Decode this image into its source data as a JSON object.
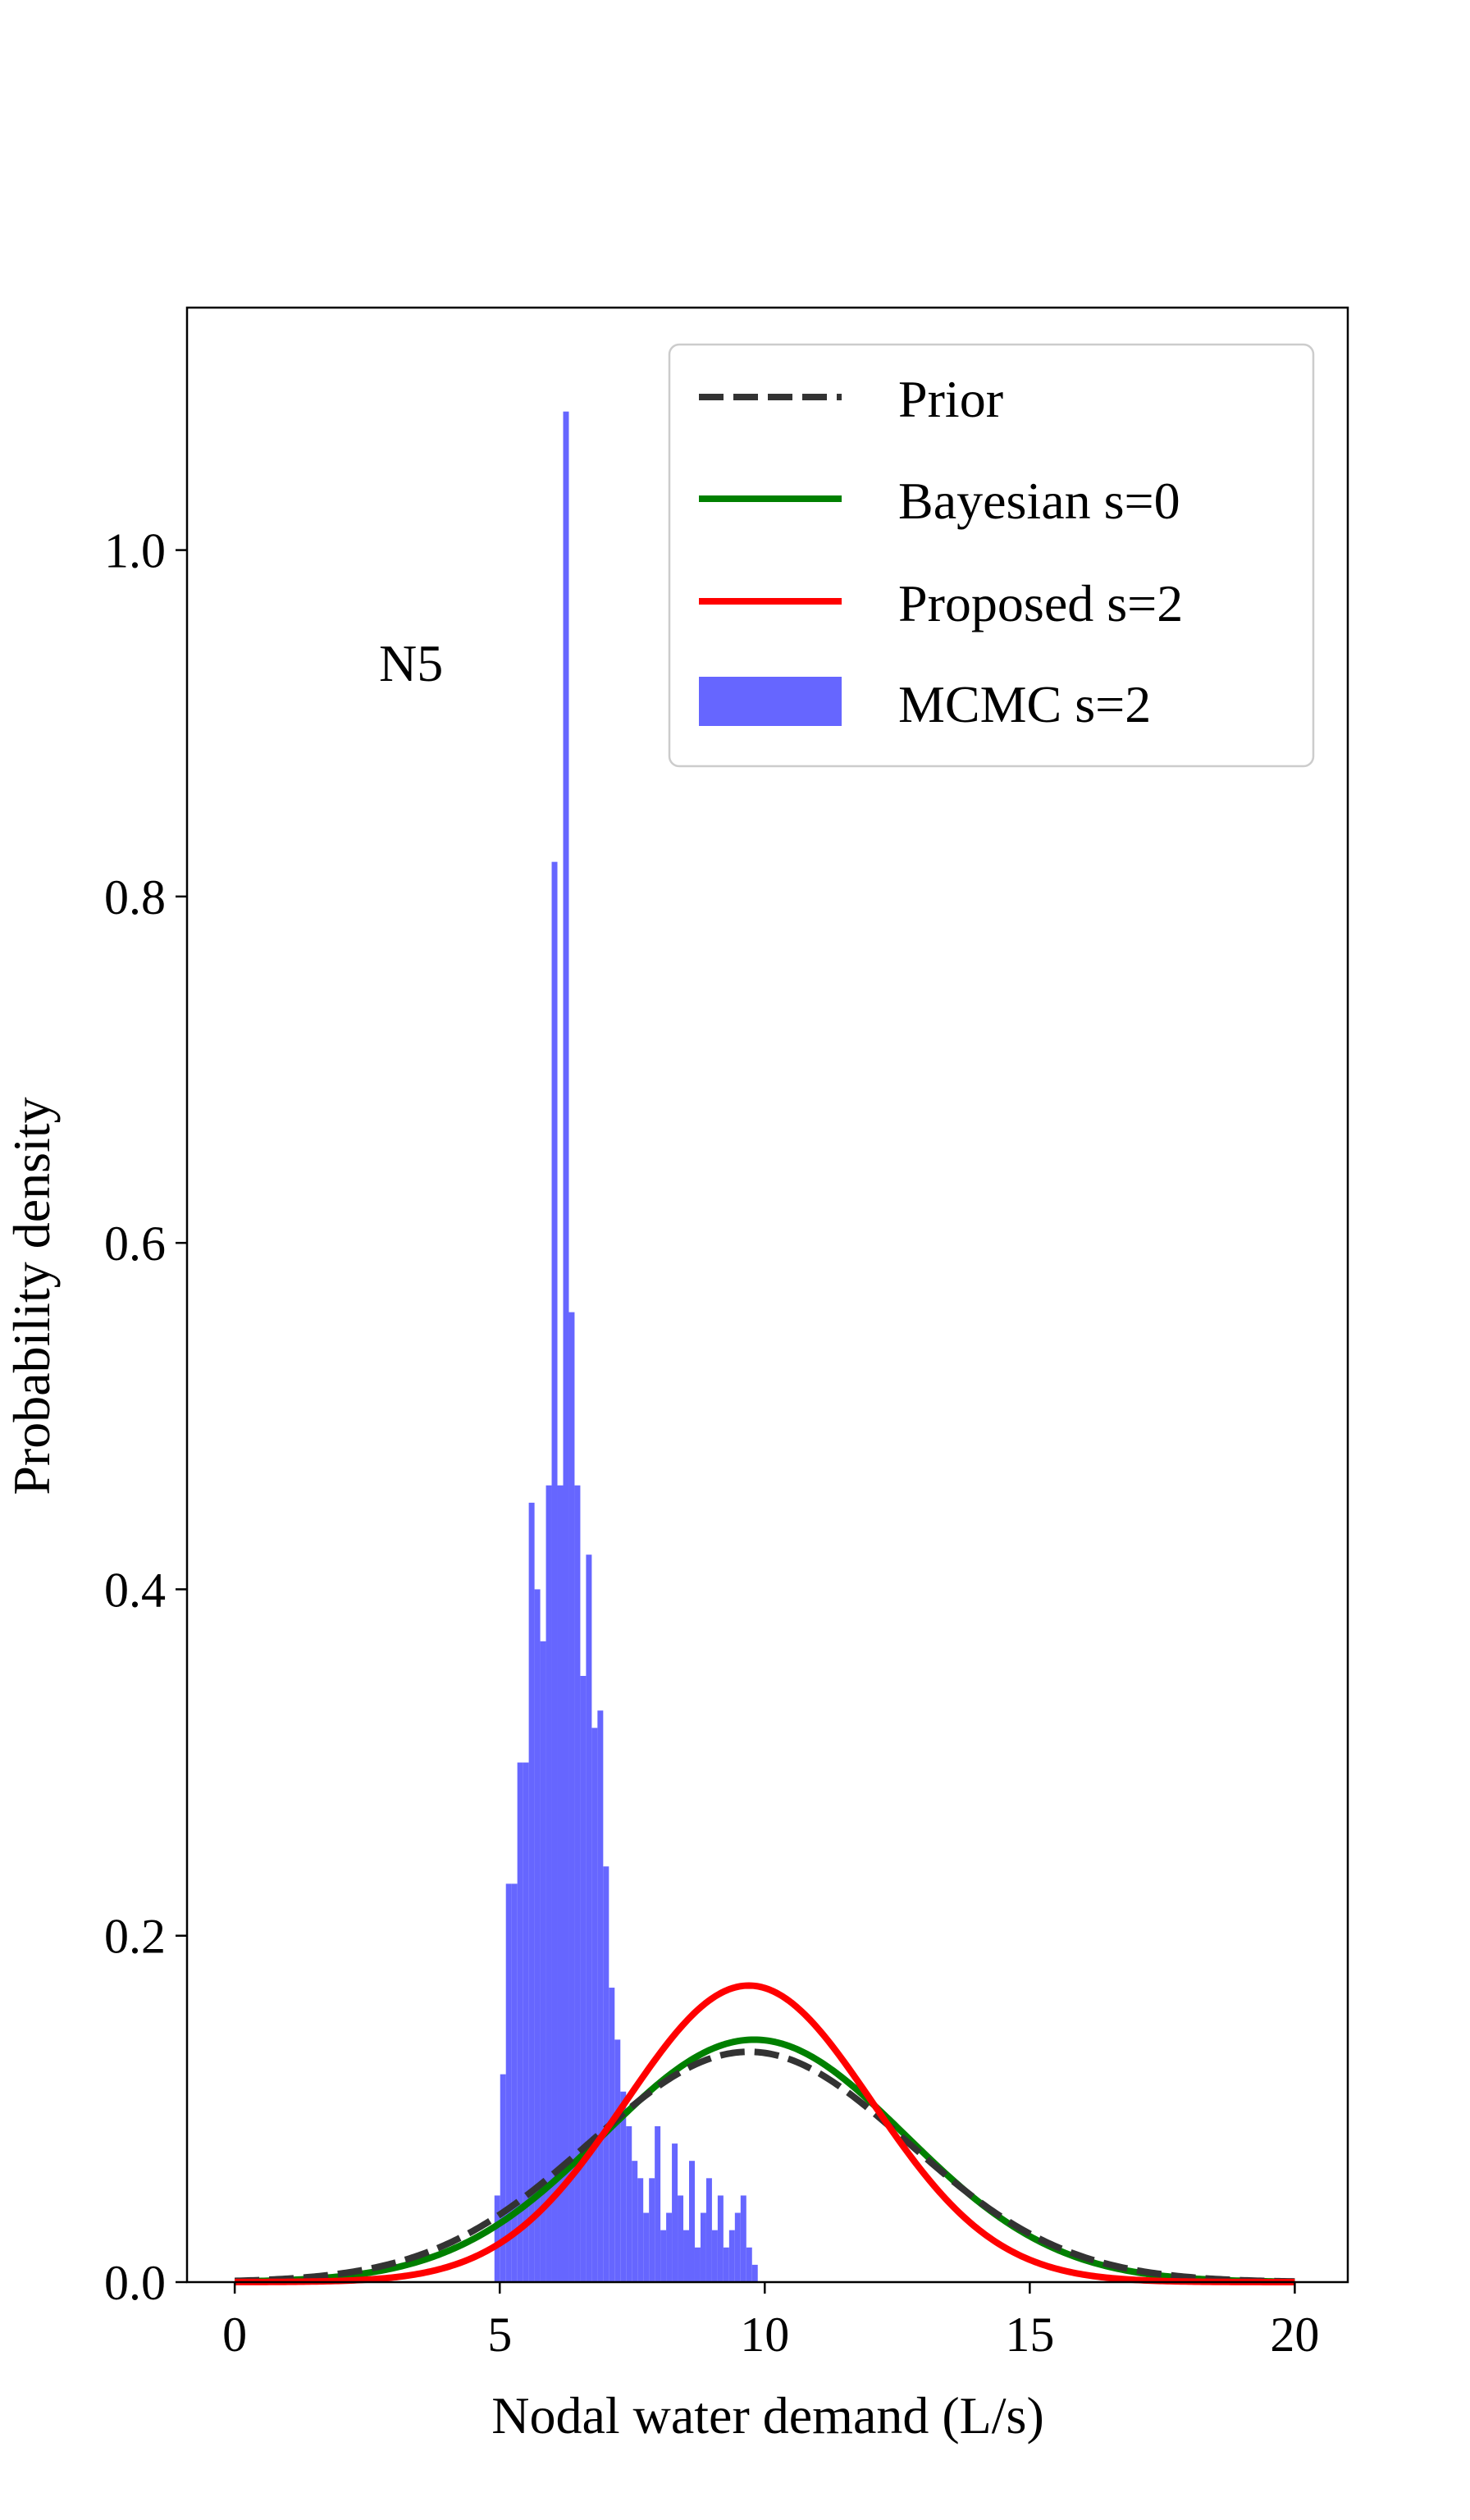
{
  "chart_data": {
    "type": "line",
    "title": "",
    "xlabel": "Nodal water demand (L/s)",
    "ylabel": "Probability density",
    "xlim": [
      -0.9,
      21.0
    ],
    "ylim": [
      0.0,
      1.14
    ],
    "xticks": [
      {
        "value": 0,
        "label": "0"
      },
      {
        "value": 5,
        "label": "5"
      },
      {
        "value": 10,
        "label": "10"
      },
      {
        "value": 15,
        "label": "15"
      },
      {
        "value": 20,
        "label": "20"
      }
    ],
    "yticks": [
      {
        "value": 0.0,
        "label": "0.0"
      },
      {
        "value": 0.2,
        "label": "0.2"
      },
      {
        "value": 0.4,
        "label": "0.4"
      },
      {
        "value": 0.6,
        "label": "0.6"
      },
      {
        "value": 0.8,
        "label": "0.8"
      },
      {
        "value": 1.0,
        "label": "1.0"
      }
    ],
    "grid": false,
    "legend_position": "upper-right",
    "annotation": "N5",
    "series": [
      {
        "name": "Prior",
        "kind": "line",
        "style": "dashed",
        "color": "#333333",
        "mean": 9.7,
        "std": 3.0
      },
      {
        "name": "Bayesian s=0",
        "kind": "line",
        "style": "solid",
        "color": "#008000",
        "mean": 9.8,
        "std": 2.85
      },
      {
        "name": "Proposed s=2",
        "kind": "line",
        "style": "solid",
        "color": "#ff0000",
        "mean": 9.7,
        "std": 2.33
      },
      {
        "name": "MCMC s=2",
        "kind": "histogram",
        "color": "#6666ff",
        "bin_width": 0.108,
        "bin_starts": [
          4.9,
          5.008,
          5.116,
          5.224,
          5.332,
          5.44,
          5.548,
          5.656,
          5.764,
          5.872,
          5.98,
          6.088,
          6.196,
          6.304,
          6.412,
          6.52,
          6.628,
          6.736,
          6.844,
          6.952,
          7.06,
          7.168,
          7.276,
          7.384,
          7.492,
          7.6,
          7.708,
          7.816,
          7.924,
          8.032,
          8.14,
          8.248,
          8.356,
          8.464,
          8.572,
          8.68,
          8.788,
          8.896,
          9.004,
          9.112,
          9.22,
          9.328,
          9.436,
          9.544,
          9.652,
          9.76
        ],
        "densities": [
          0.05,
          0.12,
          0.23,
          0.23,
          0.3,
          0.3,
          0.45,
          0.4,
          0.37,
          0.46,
          0.82,
          0.46,
          1.08,
          0.56,
          0.46,
          0.35,
          0.42,
          0.32,
          0.33,
          0.24,
          0.17,
          0.14,
          0.11,
          0.09,
          0.07,
          0.06,
          0.04,
          0.06,
          0.09,
          0.03,
          0.04,
          0.08,
          0.05,
          0.03,
          0.07,
          0.02,
          0.04,
          0.06,
          0.03,
          0.05,
          0.02,
          0.03,
          0.04,
          0.05,
          0.02,
          0.01
        ]
      }
    ]
  }
}
